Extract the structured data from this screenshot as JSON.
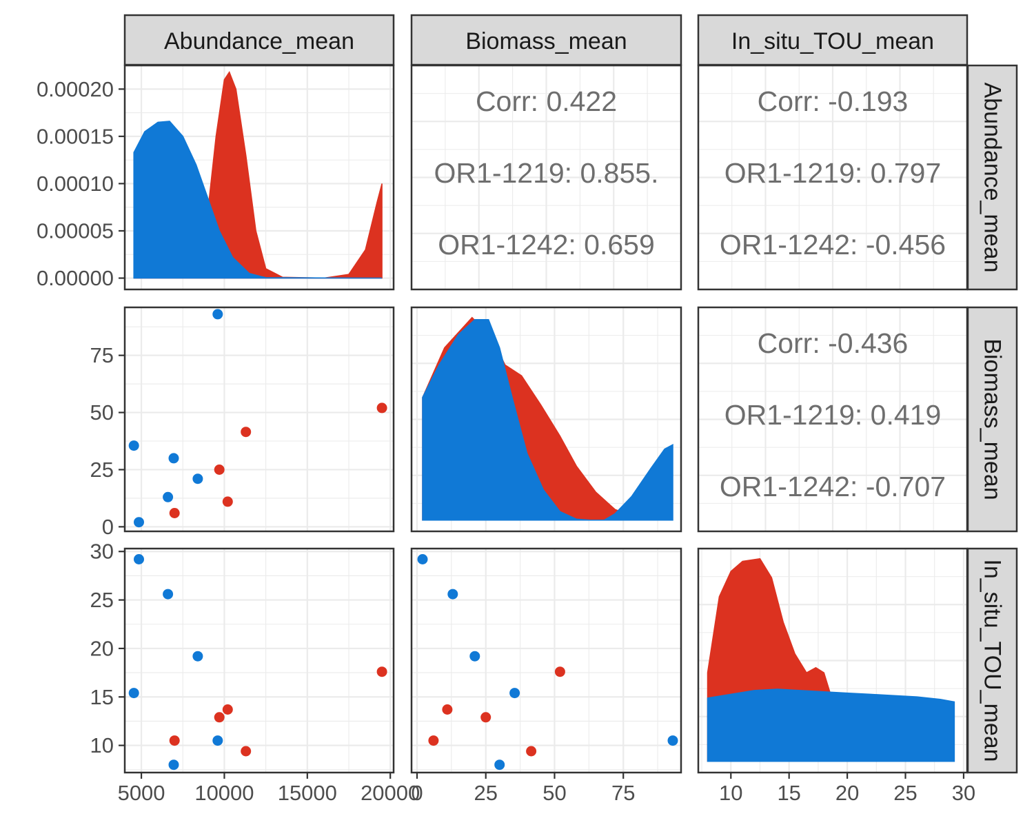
{
  "colors": {
    "OR1-1219": "#dc3220",
    "OR1-1242": "#1079d6",
    "grid_major": "#ebebeb",
    "strip_bg": "#d9d9d9",
    "border": "#333333",
    "corr_text": "#6e6e6e"
  },
  "chart_data": {
    "type": "scatter-matrix",
    "variables": [
      "Abundance_mean",
      "Biomass_mean",
      "In_situ_TOU_mean"
    ],
    "groups": [
      "OR1-1219",
      "OR1-1242"
    ],
    "axes": {
      "Abundance_mean": {
        "lim": [
          4000,
          20200
        ],
        "ticks": [
          5000,
          10000,
          15000,
          20000
        ],
        "tick_labels": [
          "5000",
          "10000",
          "15000",
          "20000"
        ]
      },
      "Biomass_mean": {
        "lim": [
          -2,
          96
        ],
        "ticks": [
          0,
          25,
          50,
          75
        ],
        "tick_labels": [
          "0",
          "25",
          "50",
          "75"
        ]
      },
      "In_situ_TOU_mean": {
        "lim": [
          7.2,
          30.3
        ],
        "ticks": [
          10,
          15,
          20,
          25,
          30
        ],
        "tick_labels": [
          "10",
          "15",
          "20",
          "25",
          "30"
        ]
      },
      "density_y": {
        "lim": [
          -1.2e-05,
          0.000225
        ],
        "ticks": [
          0,
          5e-05,
          0.0001,
          0.00015,
          0.0002
        ],
        "tick_labels": [
          "0.00000",
          "0.00005",
          "0.00010",
          "0.00015",
          "0.00020"
        ]
      }
    },
    "points": [
      {
        "group": "OR1-1219",
        "Abundance_mean": 7000,
        "Biomass_mean": 6,
        "In_situ_TOU_mean": 10.5
      },
      {
        "group": "OR1-1219",
        "Abundance_mean": 9700,
        "Biomass_mean": 25,
        "In_situ_TOU_mean": 12.9
      },
      {
        "group": "OR1-1219",
        "Abundance_mean": 10200,
        "Biomass_mean": 11,
        "In_situ_TOU_mean": 13.7
      },
      {
        "group": "OR1-1219",
        "Abundance_mean": 11300,
        "Biomass_mean": 41.5,
        "In_situ_TOU_mean": 9.4
      },
      {
        "group": "OR1-1219",
        "Abundance_mean": 19500,
        "Biomass_mean": 52,
        "In_situ_TOU_mean": 17.6
      },
      {
        "group": "OR1-1242",
        "Abundance_mean": 4550,
        "Biomass_mean": 35.5,
        "In_situ_TOU_mean": 15.4
      },
      {
        "group": "OR1-1242",
        "Abundance_mean": 4850,
        "Biomass_mean": 2,
        "In_situ_TOU_mean": 29.2
      },
      {
        "group": "OR1-1242",
        "Abundance_mean": 6600,
        "Biomass_mean": 13,
        "In_situ_TOU_mean": 25.6
      },
      {
        "group": "OR1-1242",
        "Abundance_mean": 6950,
        "Biomass_mean": 30,
        "In_situ_TOU_mean": 8.0
      },
      {
        "group": "OR1-1242",
        "Abundance_mean": 8400,
        "Biomass_mean": 21,
        "In_situ_TOU_mean": 19.2
      },
      {
        "group": "OR1-1242",
        "Abundance_mean": 9600,
        "Biomass_mean": 93,
        "In_situ_TOU_mean": 10.5
      }
    ],
    "densities": {
      "Abundance_mean": {
        "OR1-1219": [
          [
            4550,
            0
          ],
          [
            8000,
            5e-06
          ],
          [
            8500,
            2e-05
          ],
          [
            9000,
            7e-05
          ],
          [
            9500,
            0.00015
          ],
          [
            10000,
            0.00021
          ],
          [
            10300,
            0.000218
          ],
          [
            10700,
            0.0002
          ],
          [
            11300,
            0.00013
          ],
          [
            11900,
            5e-05
          ],
          [
            12500,
            1e-05
          ],
          [
            13500,
            1e-06
          ],
          [
            16000,
            0
          ],
          [
            17500,
            4e-06
          ],
          [
            18500,
            3e-05
          ],
          [
            19200,
            8e-05
          ],
          [
            19500,
            0.0001
          ]
        ],
        "OR1-1242": [
          [
            4550,
            0.000133
          ],
          [
            5200,
            0.000155
          ],
          [
            6000,
            0.000165
          ],
          [
            6700,
            0.000166
          ],
          [
            7500,
            0.00015
          ],
          [
            8300,
            0.00012
          ],
          [
            9000,
            8.5e-05
          ],
          [
            9700,
            5e-05
          ],
          [
            10500,
            2.2e-05
          ],
          [
            11500,
            5e-06
          ],
          [
            12500,
            5e-07
          ],
          [
            19500,
            0
          ]
        ]
      },
      "Biomass_mean": {
        "OR1-1219": [
          [
            2,
            0.000569
          ],
          [
            10,
            0.0008
          ],
          [
            20,
            0.00094
          ],
          [
            27,
            0.00085
          ],
          [
            32,
            0.00072
          ],
          [
            38,
            0.00067
          ],
          [
            45,
            0.000535
          ],
          [
            52,
            0.00039
          ],
          [
            58,
            0.00025
          ],
          [
            65,
            0.00013
          ],
          [
            72,
            5e-05
          ],
          [
            80,
            1e-05
          ],
          [
            88,
            0
          ],
          [
            93,
            0
          ]
        ],
        "OR1-1242": [
          [
            2,
            0.00057
          ],
          [
            8,
            0.00072
          ],
          [
            15,
            0.00086
          ],
          [
            21,
            0.00093
          ],
          [
            26,
            0.00093
          ],
          [
            30,
            0.0008
          ],
          [
            35,
            0.00055
          ],
          [
            40,
            0.00031
          ],
          [
            46,
            0.00014
          ],
          [
            52,
            4e-05
          ],
          [
            58,
            5e-06
          ],
          [
            63,
            0
          ],
          [
            68,
            0
          ],
          [
            72,
            3e-05
          ],
          [
            78,
            0.00011
          ],
          [
            85,
            0.00024
          ],
          [
            90,
            0.00033
          ],
          [
            93,
            0.00035
          ]
        ]
      },
      "In_situ_TOU_mean": {
        "OR1-1219": [
          [
            8.0,
            0.07
          ],
          [
            9.0,
            0.13
          ],
          [
            10.0,
            0.15
          ],
          [
            11.0,
            0.158
          ],
          [
            12.5,
            0.16
          ],
          [
            13.5,
            0.145
          ],
          [
            14.5,
            0.11
          ],
          [
            15.5,
            0.085
          ],
          [
            16.5,
            0.07
          ],
          [
            17.3,
            0.074
          ],
          [
            18.0,
            0.07
          ],
          [
            19.0,
            0.04
          ],
          [
            20.0,
            0.015
          ],
          [
            21.5,
            0.004
          ],
          [
            23.0,
            0
          ],
          [
            29.2,
            0
          ]
        ],
        "OR1-1242": [
          [
            8.0,
            0.05
          ],
          [
            10.0,
            0.053
          ],
          [
            12.0,
            0.056
          ],
          [
            14.0,
            0.057
          ],
          [
            16.0,
            0.056
          ],
          [
            18.0,
            0.055
          ],
          [
            20.0,
            0.054
          ],
          [
            22.0,
            0.053
          ],
          [
            24.0,
            0.052
          ],
          [
            26.0,
            0.051
          ],
          [
            28.0,
            0.049
          ],
          [
            29.2,
            0.047
          ]
        ]
      }
    },
    "correlations": [
      {
        "row": "Abundance_mean",
        "col": "Biomass_mean",
        "lines": [
          "Corr: 0.422",
          "OR1-1219: 0.855.",
          "OR1-1242: 0.659"
        ]
      },
      {
        "row": "Abundance_mean",
        "col": "In_situ_TOU_mean",
        "lines": [
          "Corr: -0.193",
          "OR1-1219: 0.797",
          "OR1-1242: -0.456"
        ]
      },
      {
        "row": "Biomass_mean",
        "col": "In_situ_TOU_mean",
        "lines": [
          "Corr: -0.436",
          "OR1-1219: 0.419",
          "OR1-1242: -0.707"
        ]
      }
    ],
    "grid": true
  }
}
